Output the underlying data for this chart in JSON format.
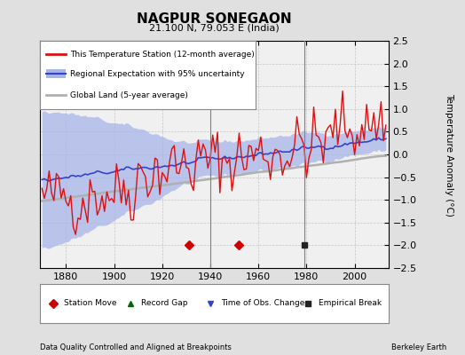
{
  "title": "NAGPUR SONEGAON",
  "subtitle": "21.100 N, 79.053 E (India)",
  "ylabel": "Temperature Anomaly (°C)",
  "xlabel_left": "Data Quality Controlled and Aligned at Breakpoints",
  "xlabel_right": "Berkeley Earth",
  "ylim": [
    -2.5,
    2.5
  ],
  "xlim": [
    1869,
    2014
  ],
  "yticks": [
    -2.5,
    -2,
    -1.5,
    -1,
    -0.5,
    0,
    0.5,
    1,
    1.5,
    2,
    2.5
  ],
  "xticks": [
    1880,
    1900,
    1920,
    1940,
    1960,
    1980,
    2000
  ],
  "background_color": "#e0e0e0",
  "plot_bg_color": "#f0f0f0",
  "station_move_years": [
    1931,
    1952
  ],
  "obs_change_years": [],
  "empirical_break_years": [
    1979
  ],
  "vertical_line_years": [
    1940,
    1979
  ],
  "legend_entries": [
    "This Temperature Station (12-month average)",
    "Regional Expectation with 95% uncertainty",
    "Global Land (5-year average)"
  ],
  "seed": 42
}
